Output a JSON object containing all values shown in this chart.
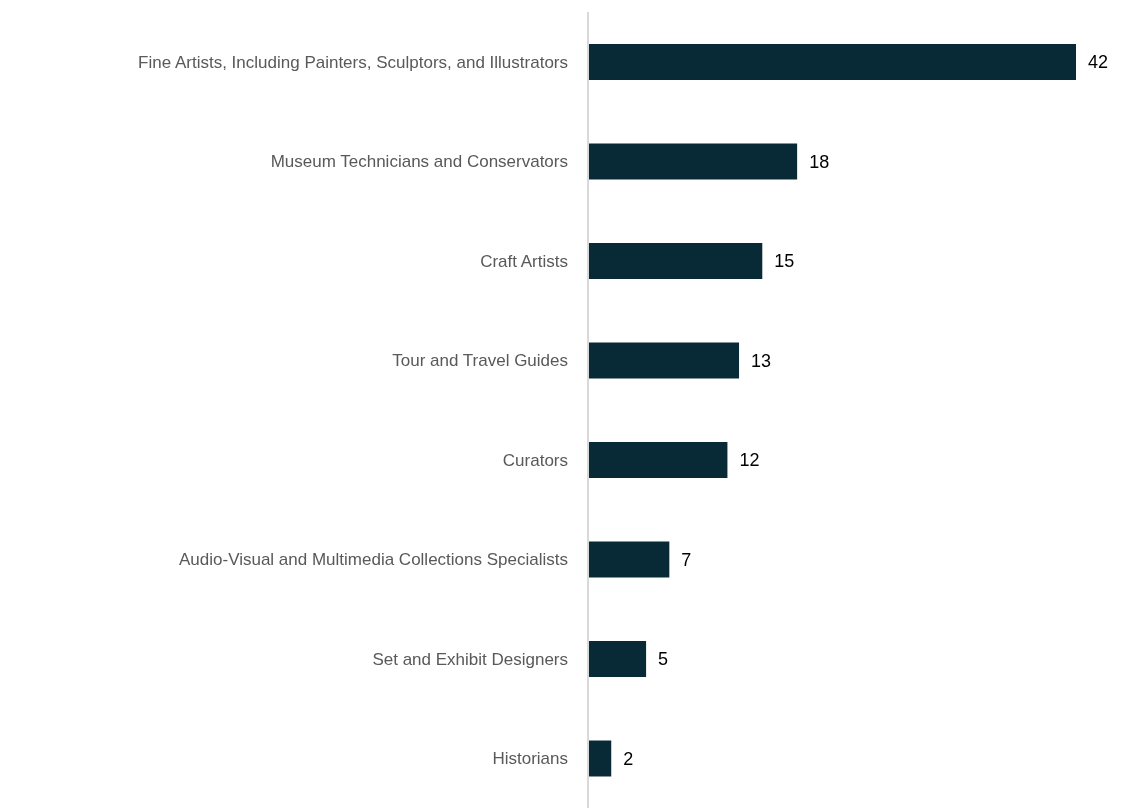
{
  "chart_data": {
    "type": "bar",
    "orientation": "horizontal",
    "categories": [
      "Fine Artists, Including Painters, Sculptors, and Illustrators",
      "Museum Technicians and Conservators",
      "Craft Artists",
      "Tour and Travel Guides",
      "Curators",
      "Audio-Visual and Multimedia Collections Specialists",
      "Set and Exhibit Designers",
      "Historians"
    ],
    "values": [
      42,
      18,
      15,
      13,
      12,
      7,
      5,
      2
    ],
    "color": "#082a36",
    "data_labels": true
  }
}
